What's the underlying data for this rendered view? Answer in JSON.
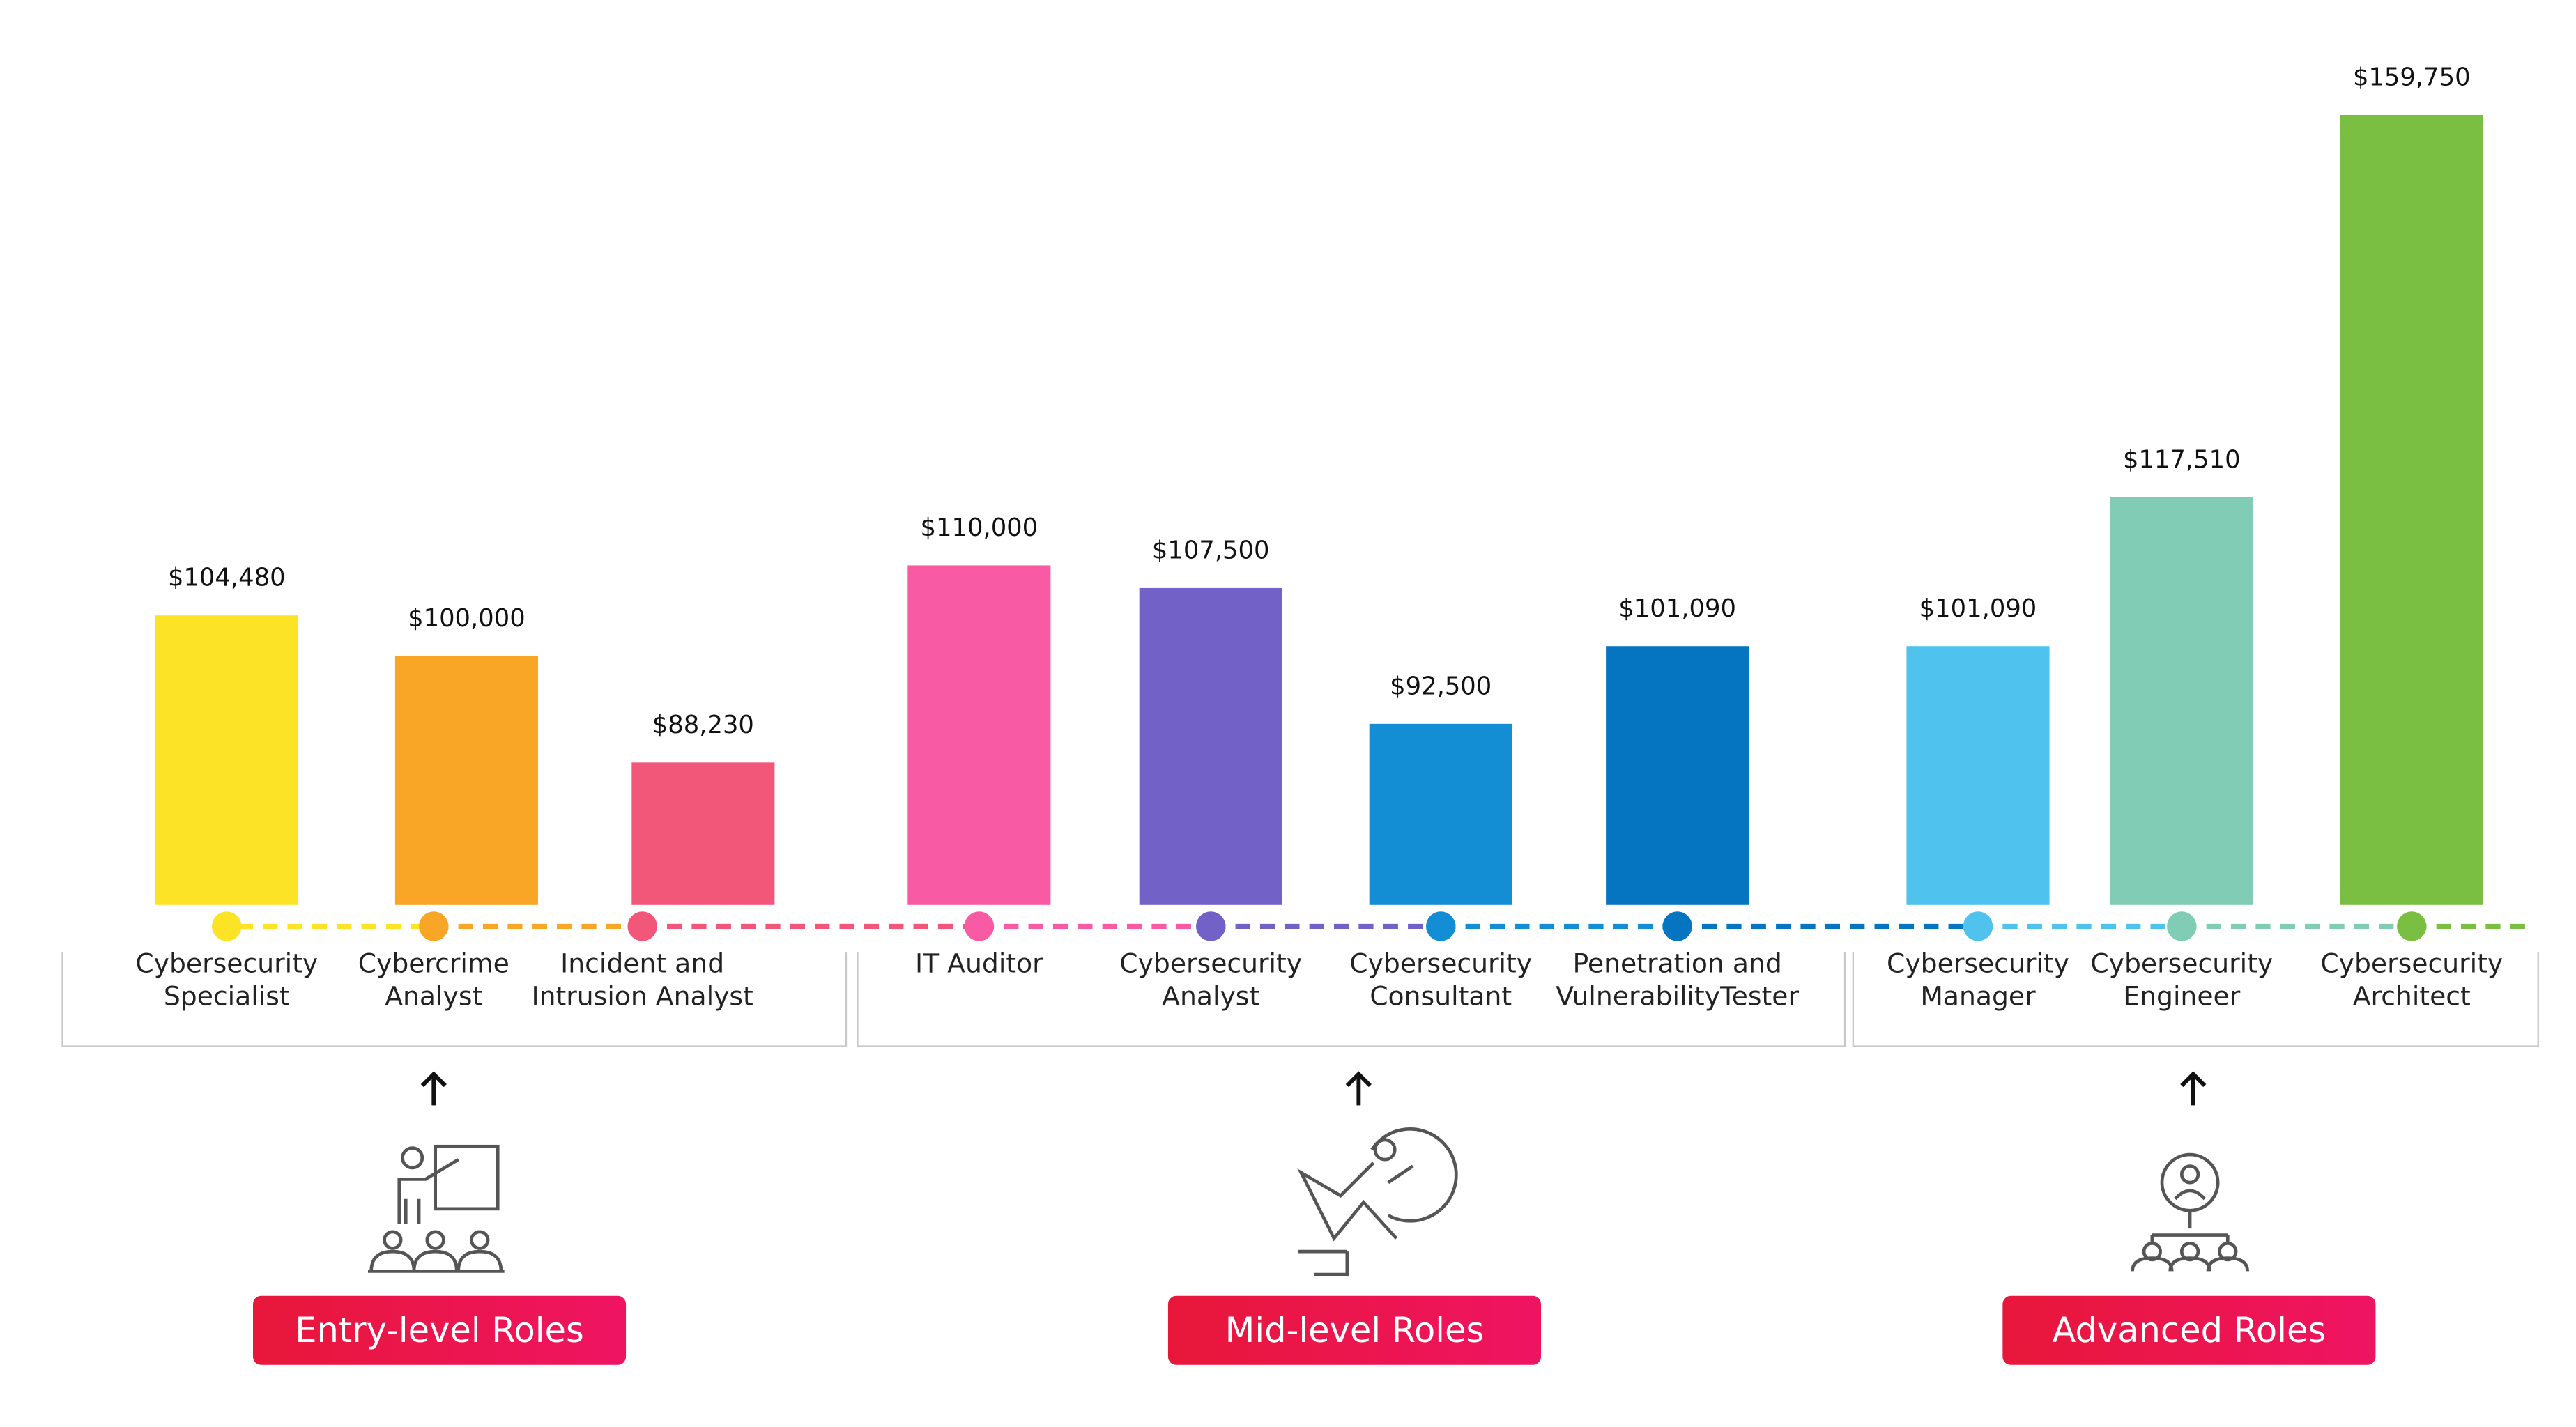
{
  "chart_data": {
    "type": "bar",
    "categories": [
      "Cybersecurity Specialist",
      "Cybercrime Analyst",
      "Incident and Intrusion Analyst",
      "IT Auditor",
      "Cybersecurity Analyst",
      "Cybersecurity Consultant",
      "Penetration and VulnerabilityTester",
      "Cybersecurity Manager",
      "Cybersecurity Engineer",
      "Cybersecurity Architect"
    ],
    "values": [
      104480,
      100000,
      88230,
      110000,
      107500,
      92500,
      101090,
      101090,
      117510,
      159750
    ],
    "value_labels": [
      "$104,480",
      "$100,000",
      "$88,230",
      "$110,000",
      "$107,500",
      "$92,500",
      "$101,090",
      "$101,090",
      "$117,510",
      "$159,750"
    ],
    "colors": [
      "#fde325",
      "#f9a526",
      "#f2577a",
      "#f95aa4",
      "#7261c7",
      "#138dd3",
      "#0675c1",
      "#4fc3ee",
      "#81ccb4",
      "#7bbf42"
    ],
    "groups": [
      "Entry-level Roles",
      "Mid-level Roles",
      "Advanced Roles"
    ]
  }
}
